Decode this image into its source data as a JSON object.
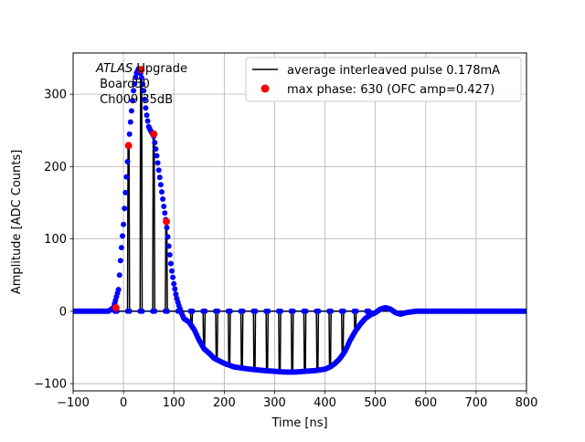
{
  "chart_data": {
    "type": "line",
    "title": "",
    "xlabel": "Time [ns]",
    "ylabel": "Amplitude [ADC Counts]",
    "xlim": [
      -100,
      800
    ],
    "ylim": [
      -110,
      357
    ],
    "grid": true,
    "xticks": [
      -100,
      0,
      100,
      200,
      300,
      400,
      500,
      600,
      700,
      800
    ],
    "yticks": [
      -100,
      0,
      100,
      200,
      300
    ],
    "xtick_labels": [
      "−100",
      "0",
      "100",
      "200",
      "300",
      "400",
      "500",
      "600",
      "700",
      "800"
    ],
    "ytick_labels": [
      "−100",
      "0",
      "100",
      "200",
      "300"
    ],
    "annotation": {
      "prefix": "ATLAS",
      "line1_rest": " Upgrade",
      "line2": " Board50",
      "line3": " Ch009 35dB"
    },
    "legend": {
      "position": "top-right",
      "entries": [
        {
          "label": "average interleaved pulse 0.178mA",
          "color": "#000000",
          "marker": "line"
        },
        {
          "label": "max phase: 630 (OFC amp=0.427)",
          "color": "#ff0000",
          "marker": "dot"
        }
      ]
    },
    "series": [
      {
        "name": "pulse-shape",
        "color": "#0000ff",
        "style": "dense-dots",
        "x": [
          -100,
          -30,
          -20,
          -10,
          -5,
          0,
          5,
          10,
          15,
          20,
          25,
          30,
          35,
          40,
          45,
          50,
          55,
          60,
          65,
          70,
          75,
          80,
          85,
          90,
          95,
          100,
          105,
          110,
          115,
          120,
          130,
          140,
          150,
          160,
          170,
          180,
          200,
          220,
          250,
          280,
          300,
          320,
          340,
          360,
          380,
          400,
          410,
          420,
          430,
          440,
          450,
          460,
          470,
          480,
          490,
          500,
          510,
          520,
          530,
          540,
          550,
          560,
          580,
          600,
          650,
          700,
          750,
          800
        ],
        "y": [
          0,
          0,
          5,
          30,
          80,
          120,
          175,
          228,
          270,
          305,
          328,
          335,
          327,
          305,
          275,
          255,
          248,
          242,
          220,
          195,
          170,
          145,
          122,
          90,
          60,
          38,
          20,
          8,
          -2,
          -10,
          -15,
          -25,
          -40,
          -52,
          -58,
          -65,
          -72,
          -77,
          -80,
          -82,
          -83,
          -84,
          -84,
          -83,
          -82,
          -80,
          -77,
          -72,
          -65,
          -55,
          -40,
          -28,
          -18,
          -10,
          -5,
          -2,
          3,
          5,
          3,
          -2,
          -4,
          -2,
          0,
          0,
          0,
          0,
          0,
          0
        ]
      },
      {
        "name": "average interleaved pulse 0.178mA",
        "color": "#000000",
        "style": "sampled-line",
        "sample_period": 25,
        "sample_offset": -15,
        "x_range": [
          -100,
          800
        ]
      },
      {
        "name": "max phase: 630 (OFC amp=0.427)",
        "color": "#ff0000",
        "style": "markers",
        "x": [
          -15,
          10,
          35,
          60,
          85
        ],
        "y": [
          5,
          229,
          334,
          245,
          124
        ]
      }
    ]
  }
}
